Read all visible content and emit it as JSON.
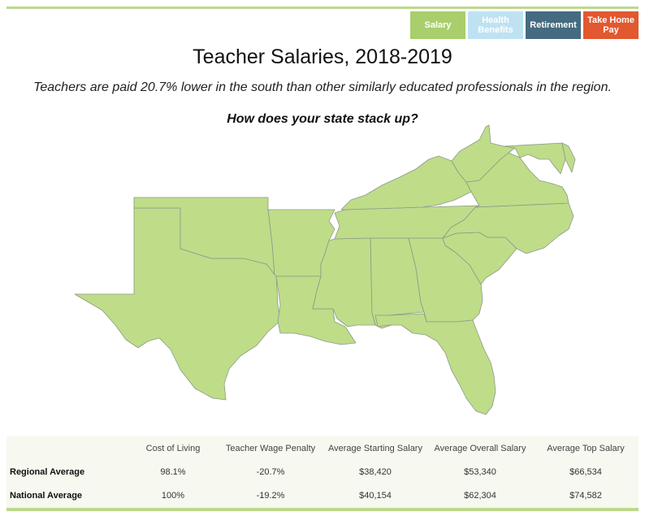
{
  "tabs": [
    {
      "label": "Salary",
      "color": "#a8cf6b"
    },
    {
      "label": "Health Benefits",
      "color": "#bfe2f2"
    },
    {
      "label": "Retirement",
      "color": "#456b80"
    },
    {
      "label": "Take Home Pay",
      "color": "#e2582f"
    }
  ],
  "title": "Teacher Salaries, 2018-2019",
  "subtitle": "Teachers are paid 20.7% lower in the south than other similarly educated professionals in the region.",
  "question": "How does your state stack up?",
  "map": {
    "fill_color": "#bfdc89",
    "border_color": "#8a9a86"
  },
  "table": {
    "columns": [
      "",
      "Cost of Living",
      "Teacher Wage Penalty",
      "Average Starting Salary",
      "Average Overall Salary",
      "Average Top Salary"
    ],
    "rows": [
      {
        "label": "Regional Average",
        "values": [
          "98.1%",
          "-20.7%",
          "$38,420",
          "$53,340",
          "$66,534"
        ]
      },
      {
        "label": "National Average",
        "values": [
          "100%",
          "-19.2%",
          "$40,154",
          "$62,304",
          "$74,582"
        ]
      }
    ]
  }
}
